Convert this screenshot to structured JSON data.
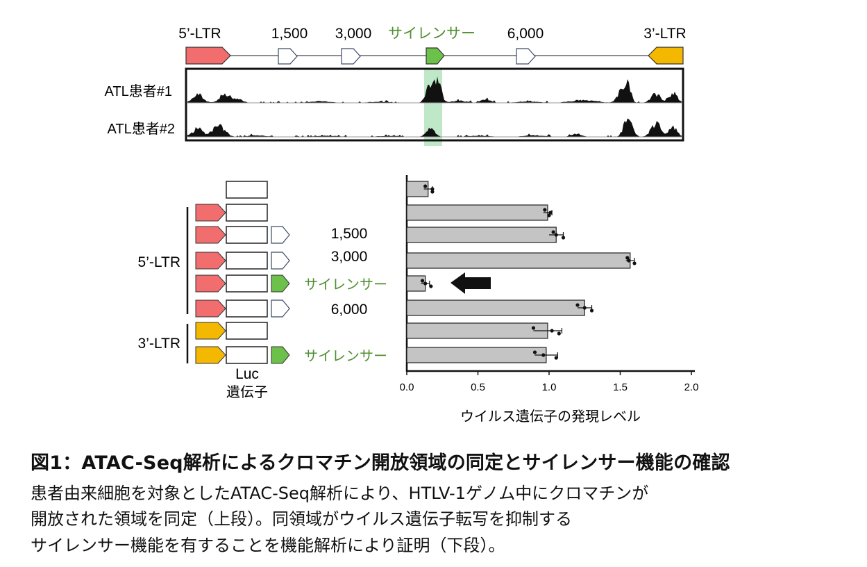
{
  "genome_map": {
    "labels": [
      "5’-LTR",
      "1,500",
      "3,000",
      "サイレンサー",
      "6,000",
      "3’-LTR"
    ],
    "colors": {
      "ltr5": "#f26d6d",
      "ltr3": "#f5b800",
      "silencer": "#6cc14b",
      "silencer_text": "#4f8f2f",
      "open_arrow": "#ffffff",
      "highlight": "#a8e0b5"
    }
  },
  "tracks": [
    {
      "label": "ATL患者#1"
    },
    {
      "label": "ATL患者#2"
    }
  ],
  "constructs": {
    "group_labels": [
      "5’-LTR",
      "3’-LTR"
    ],
    "row_labels": [
      "",
      "",
      "1,500",
      "3,000",
      "サイレンサー",
      "6,000",
      "",
      "サイレンサー"
    ],
    "luc_label_line1": "Luc",
    "luc_label_line2": "遺伝子"
  },
  "chart_data": {
    "type": "bar",
    "orientation": "horizontal",
    "categories": [
      "Luc",
      "5’-LTR",
      "5’-LTR + 1,500",
      "5’-LTR + 3,000",
      "5’-LTR + サイレンサー",
      "5’-LTR + 6,000",
      "3’-LTR",
      "3’-LTR + サイレンサー"
    ],
    "values": [
      0.15,
      0.99,
      1.05,
      1.57,
      0.13,
      1.25,
      0.99,
      0.98
    ],
    "errors": [
      0.03,
      0.03,
      0.05,
      0.03,
      0.03,
      0.05,
      0.1,
      0.08
    ],
    "points": [
      [
        0.13,
        0.18,
        0.18
      ],
      [
        0.97,
        1.01,
        1.0
      ],
      [
        1.03,
        1.05,
        1.1
      ],
      [
        1.55,
        1.56,
        1.6
      ],
      [
        0.11,
        0.13,
        0.17
      ],
      [
        1.2,
        1.25,
        1.3
      ],
      [
        0.89,
        1.02,
        1.07
      ],
      [
        0.9,
        0.96,
        1.05
      ]
    ],
    "xlim": [
      0,
      2.0
    ],
    "xticks": [
      "0.0",
      "0.5",
      "1.0",
      "1.5",
      "2.0"
    ],
    "xlabel": "ウイルス遺伝子の発現レベル",
    "highlight_index": 4,
    "bar_color": "#c4c4c4"
  },
  "caption": {
    "title": "図1：ATAC-Seq解析によるクロマチン開放領域の同定とサイレンサー機能の確認",
    "lines": [
      "患者由来細胞を対象としたATAC-Seq解析により、HTLV-1ゲノム中にクロマチンが",
      "開放された領域を同定（上段）。同領域がウイルス遺伝子転写を抑制する",
      "サイレンサー機能を有することを機能解析により証明（下段）。"
    ]
  }
}
